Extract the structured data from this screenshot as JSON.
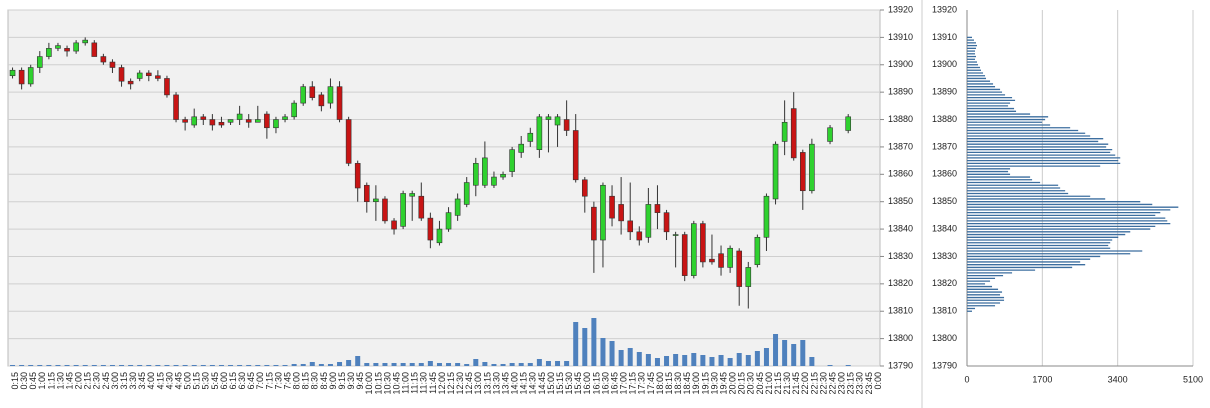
{
  "chart_data": [
    {
      "type": "candlestick",
      "x": [
        "0:15",
        "0:30",
        "0:45",
        "1:00",
        "1:15",
        "1:30",
        "1:45",
        "2:00",
        "2:15",
        "2:30",
        "2:45",
        "3:00",
        "3:15",
        "3:30",
        "3:45",
        "4:00",
        "4:15",
        "4:30",
        "4:45",
        "5:00",
        "5:15",
        "5:30",
        "5:45",
        "6:00",
        "6:15",
        "6:30",
        "6:45",
        "7:00",
        "7:15",
        "7:30",
        "7:45",
        "8:00",
        "8:15",
        "8:30",
        "8:45",
        "9:00",
        "9:15",
        "9:30",
        "9:45",
        "10:00",
        "10:15",
        "10:30",
        "10:45",
        "11:00",
        "11:15",
        "11:30",
        "11:45",
        "12:00",
        "12:15",
        "12:30",
        "12:45",
        "13:00",
        "13:15",
        "13:30",
        "13:45",
        "14:00",
        "14:15",
        "14:30",
        "14:45",
        "15:00",
        "15:15",
        "15:30",
        "15:45",
        "16:00",
        "16:15",
        "16:30",
        "16:45",
        "17:00",
        "17:15",
        "17:30",
        "17:45",
        "18:00",
        "18:15",
        "18:30",
        "18:45",
        "19:00",
        "19:15",
        "19:30",
        "19:45",
        "20:00",
        "20:15",
        "20:30",
        "20:45",
        "21:00",
        "21:15",
        "21:30",
        "21:45",
        "22:00",
        "22:15",
        "22:30",
        "22:45",
        "23:00",
        "23:15",
        "23:30",
        "23:45",
        "0:00"
      ],
      "open": [
        13896,
        13898,
        13893,
        13899,
        13903,
        13906,
        13906,
        13905,
        13908,
        13908,
        13903,
        13901,
        13899,
        13894,
        13895,
        13897,
        13896,
        13895,
        13889,
        13880,
        13878,
        13881,
        13880,
        13879,
        13879,
        13880,
        13880,
        13879,
        13882,
        13877,
        13880,
        13881,
        13886,
        13892,
        13889,
        13886,
        13892,
        13880,
        13864,
        13856,
        13850,
        13851,
        13843,
        13841,
        13852,
        13852,
        13844,
        13835,
        13840,
        13845,
        13849,
        13856,
        13856,
        13856,
        13859,
        13861,
        13868,
        13872,
        13869,
        13880,
        13878,
        13880,
        13876,
        13858,
        13848,
        13836,
        13852,
        13849,
        13843,
        13839,
        13837,
        13849,
        13846,
        13838,
        13838,
        13823,
        13842,
        13829,
        13831,
        13826,
        13832,
        13819,
        13827,
        13837,
        13851,
        13872,
        13884,
        13868,
        13854,
        null,
        13872,
        null,
        13876,
        null,
        null,
        null
      ],
      "high": [
        13899,
        13899,
        13900,
        13905,
        13908,
        13908,
        13907,
        13909,
        13910,
        13909,
        13904,
        13902,
        13900,
        13895,
        13898,
        13898,
        13898,
        13896,
        13890,
        13881,
        13884,
        13882,
        13882,
        13881,
        13880,
        13885,
        13882,
        13885,
        13883,
        13881,
        13882,
        13887,
        13893,
        13894,
        13890,
        13895,
        13894,
        13881,
        13865,
        13857,
        13856,
        13852,
        13844,
        13854,
        13854,
        13857,
        13846,
        13843,
        13848,
        13853,
        13859,
        13866,
        13872,
        13861,
        13861,
        13870,
        13874,
        13877,
        13882,
        13882,
        13882,
        13887,
        13882,
        13859,
        13850,
        13857,
        13856,
        13859,
        13857,
        13841,
        13855,
        13856,
        13847,
        13839,
        13839,
        13843,
        13843,
        13838,
        13834,
        13834,
        13833,
        13828,
        13838,
        13853,
        13872,
        13887,
        13890,
        13869,
        13873,
        null,
        13878,
        null,
        13882,
        null,
        null,
        null
      ],
      "low": [
        13895,
        13891,
        13892,
        13897,
        13902,
        13905,
        13903,
        13904,
        13907,
        13903,
        13900,
        13897,
        13892,
        13891,
        13894,
        13894,
        13894,
        13888,
        13879,
        13876,
        13877,
        13878,
        13876,
        13877,
        13878,
        13878,
        13877,
        13879,
        13873,
        13875,
        13879,
        13880,
        13885,
        13887,
        13883,
        13884,
        13879,
        13863,
        13850,
        13846,
        13843,
        13842,
        13838,
        13840,
        13843,
        13843,
        13833,
        13834,
        13839,
        13843,
        13848,
        13852,
        13855,
        13855,
        13858,
        13859,
        13866,
        13870,
        13866,
        13868,
        13870,
        13874,
        13857,
        13846,
        13824,
        13826,
        13841,
        13838,
        13836,
        13834,
        13835,
        13840,
        13836,
        13826,
        13821,
        13822,
        13826,
        13827,
        13823,
        13824,
        13812,
        13811,
        13826,
        13832,
        13849,
        13867,
        13865,
        13847,
        13853,
        null,
        13871,
        null,
        13875,
        null,
        null,
        null
      ],
      "close": [
        13898,
        13893,
        13899,
        13903,
        13906,
        13907,
        13905,
        13908,
        13909,
        13903,
        13901,
        13899,
        13894,
        13893,
        13897,
        13896,
        13895,
        13889,
        13880,
        13879,
        13881,
        13880,
        13878,
        13878,
        13880,
        13882,
        13879,
        13880,
        13877,
        13880,
        13881,
        13886,
        13892,
        13888,
        13885,
        13892,
        13880,
        13864,
        13855,
        13850,
        13851,
        13843,
        13840,
        13853,
        13853,
        13844,
        13836,
        13840,
        13846,
        13851,
        13857,
        13864,
        13866,
        13859,
        13860,
        13869,
        13871,
        13875,
        13881,
        13881,
        13881,
        13876,
        13858,
        13852,
        13836,
        13856,
        13844,
        13843,
        13839,
        13836,
        13849,
        13846,
        13839,
        13838,
        13823,
        13842,
        13828,
        13828,
        13826,
        13833,
        13819,
        13826,
        13837,
        13852,
        13871,
        13879,
        13866,
        13854,
        13871,
        null,
        13877,
        null,
        13881,
        null,
        null,
        null
      ],
      "volume": [
        1,
        1,
        1,
        1,
        1,
        1,
        1,
        1,
        1,
        1,
        1,
        1,
        1,
        1,
        1,
        1,
        1,
        1,
        1,
        1,
        1,
        1,
        1,
        1,
        1,
        1,
        1,
        1,
        1,
        1,
        1,
        2,
        2,
        4,
        2,
        2,
        4,
        6,
        10,
        3,
        3,
        3,
        3,
        3,
        3,
        3,
        5,
        3,
        3,
        3,
        2,
        7,
        4,
        2,
        2,
        3,
        3,
        3,
        7,
        5,
        5,
        5,
        44,
        38,
        48,
        28,
        25,
        16,
        18,
        14,
        12,
        8,
        10,
        12,
        11,
        13,
        11,
        9,
        11,
        8,
        13,
        11,
        15,
        18,
        32,
        26,
        22,
        26,
        9,
        null,
        1,
        null,
        1,
        null,
        null,
        null
      ],
      "up_color": "#2fd12f",
      "down_color": "#c81414",
      "volume_color": "#4f81bd",
      "ylim": [
        13790,
        13920
      ],
      "yticks": [
        13790,
        13800,
        13810,
        13820,
        13830,
        13840,
        13850,
        13860,
        13870,
        13880,
        13890,
        13900,
        13910,
        13920
      ],
      "grid": true
    },
    {
      "type": "profile",
      "y": [
        13910,
        13909,
        13908,
        13907,
        13906,
        13905,
        13904,
        13903,
        13902,
        13901,
        13900,
        13899,
        13898,
        13897,
        13896,
        13895,
        13894,
        13893,
        13892,
        13891,
        13890,
        13889,
        13888,
        13887,
        13886,
        13885,
        13884,
        13883,
        13882,
        13881,
        13880,
        13879,
        13878,
        13877,
        13876,
        13875,
        13874,
        13873,
        13872,
        13871,
        13870,
        13869,
        13868,
        13867,
        13866,
        13865,
        13864,
        13863,
        13862,
        13861,
        13860,
        13859,
        13858,
        13857,
        13856,
        13855,
        13854,
        13853,
        13852,
        13851,
        13850,
        13849,
        13848,
        13847,
        13846,
        13845,
        13844,
        13843,
        13842,
        13841,
        13840,
        13839,
        13838,
        13837,
        13836,
        13835,
        13834,
        13833,
        13832,
        13831,
        13830,
        13829,
        13828,
        13827,
        13826,
        13825,
        13824,
        13823,
        13822,
        13821,
        13820,
        13819,
        13818,
        13817,
        13816,
        13815,
        13814,
        13813,
        13812,
        13811,
        13810
      ],
      "values": [
        113,
        158,
        203,
        226,
        203,
        181,
        181,
        203,
        181,
        226,
        249,
        294,
        316,
        362,
        407,
        429,
        520,
        588,
        633,
        746,
        791,
        859,
        1017,
        1085,
        972,
        927,
        1062,
        1107,
        1424,
        1831,
        1763,
        1695,
        1876,
        2328,
        2509,
        2667,
        2780,
        3074,
        2961,
        3187,
        3141,
        3277,
        3232,
        3345,
        3458,
        3413,
        3458,
        3006,
        972,
        927,
        972,
        1424,
        1469,
        1650,
        2057,
        2102,
        2215,
        2283,
        2780,
        3119,
        3910,
        4181,
        4769,
        4588,
        4362,
        4249,
        4475,
        4520,
        4588,
        4249,
        4136,
        3684,
        3571,
        3413,
        3277,
        3232,
        3187,
        3232,
        3955,
        3684,
        3006,
        2780,
        2554,
        2667,
        2373,
        1537,
        1017,
        814,
        633,
        520,
        407,
        565,
        701,
        791,
        746,
        836,
        836,
        746,
        633,
        181,
        113
      ],
      "color": "#3c6e9f",
      "xlim": [
        0,
        5100
      ],
      "xticks": [
        0,
        1700,
        3400,
        5100
      ],
      "ylim": [
        13790,
        13920
      ],
      "yticks": [
        13790,
        13800,
        13810,
        13820,
        13830,
        13840,
        13850,
        13860,
        13870,
        13880,
        13890,
        13900,
        13910,
        13920
      ],
      "grid": true
    }
  ]
}
